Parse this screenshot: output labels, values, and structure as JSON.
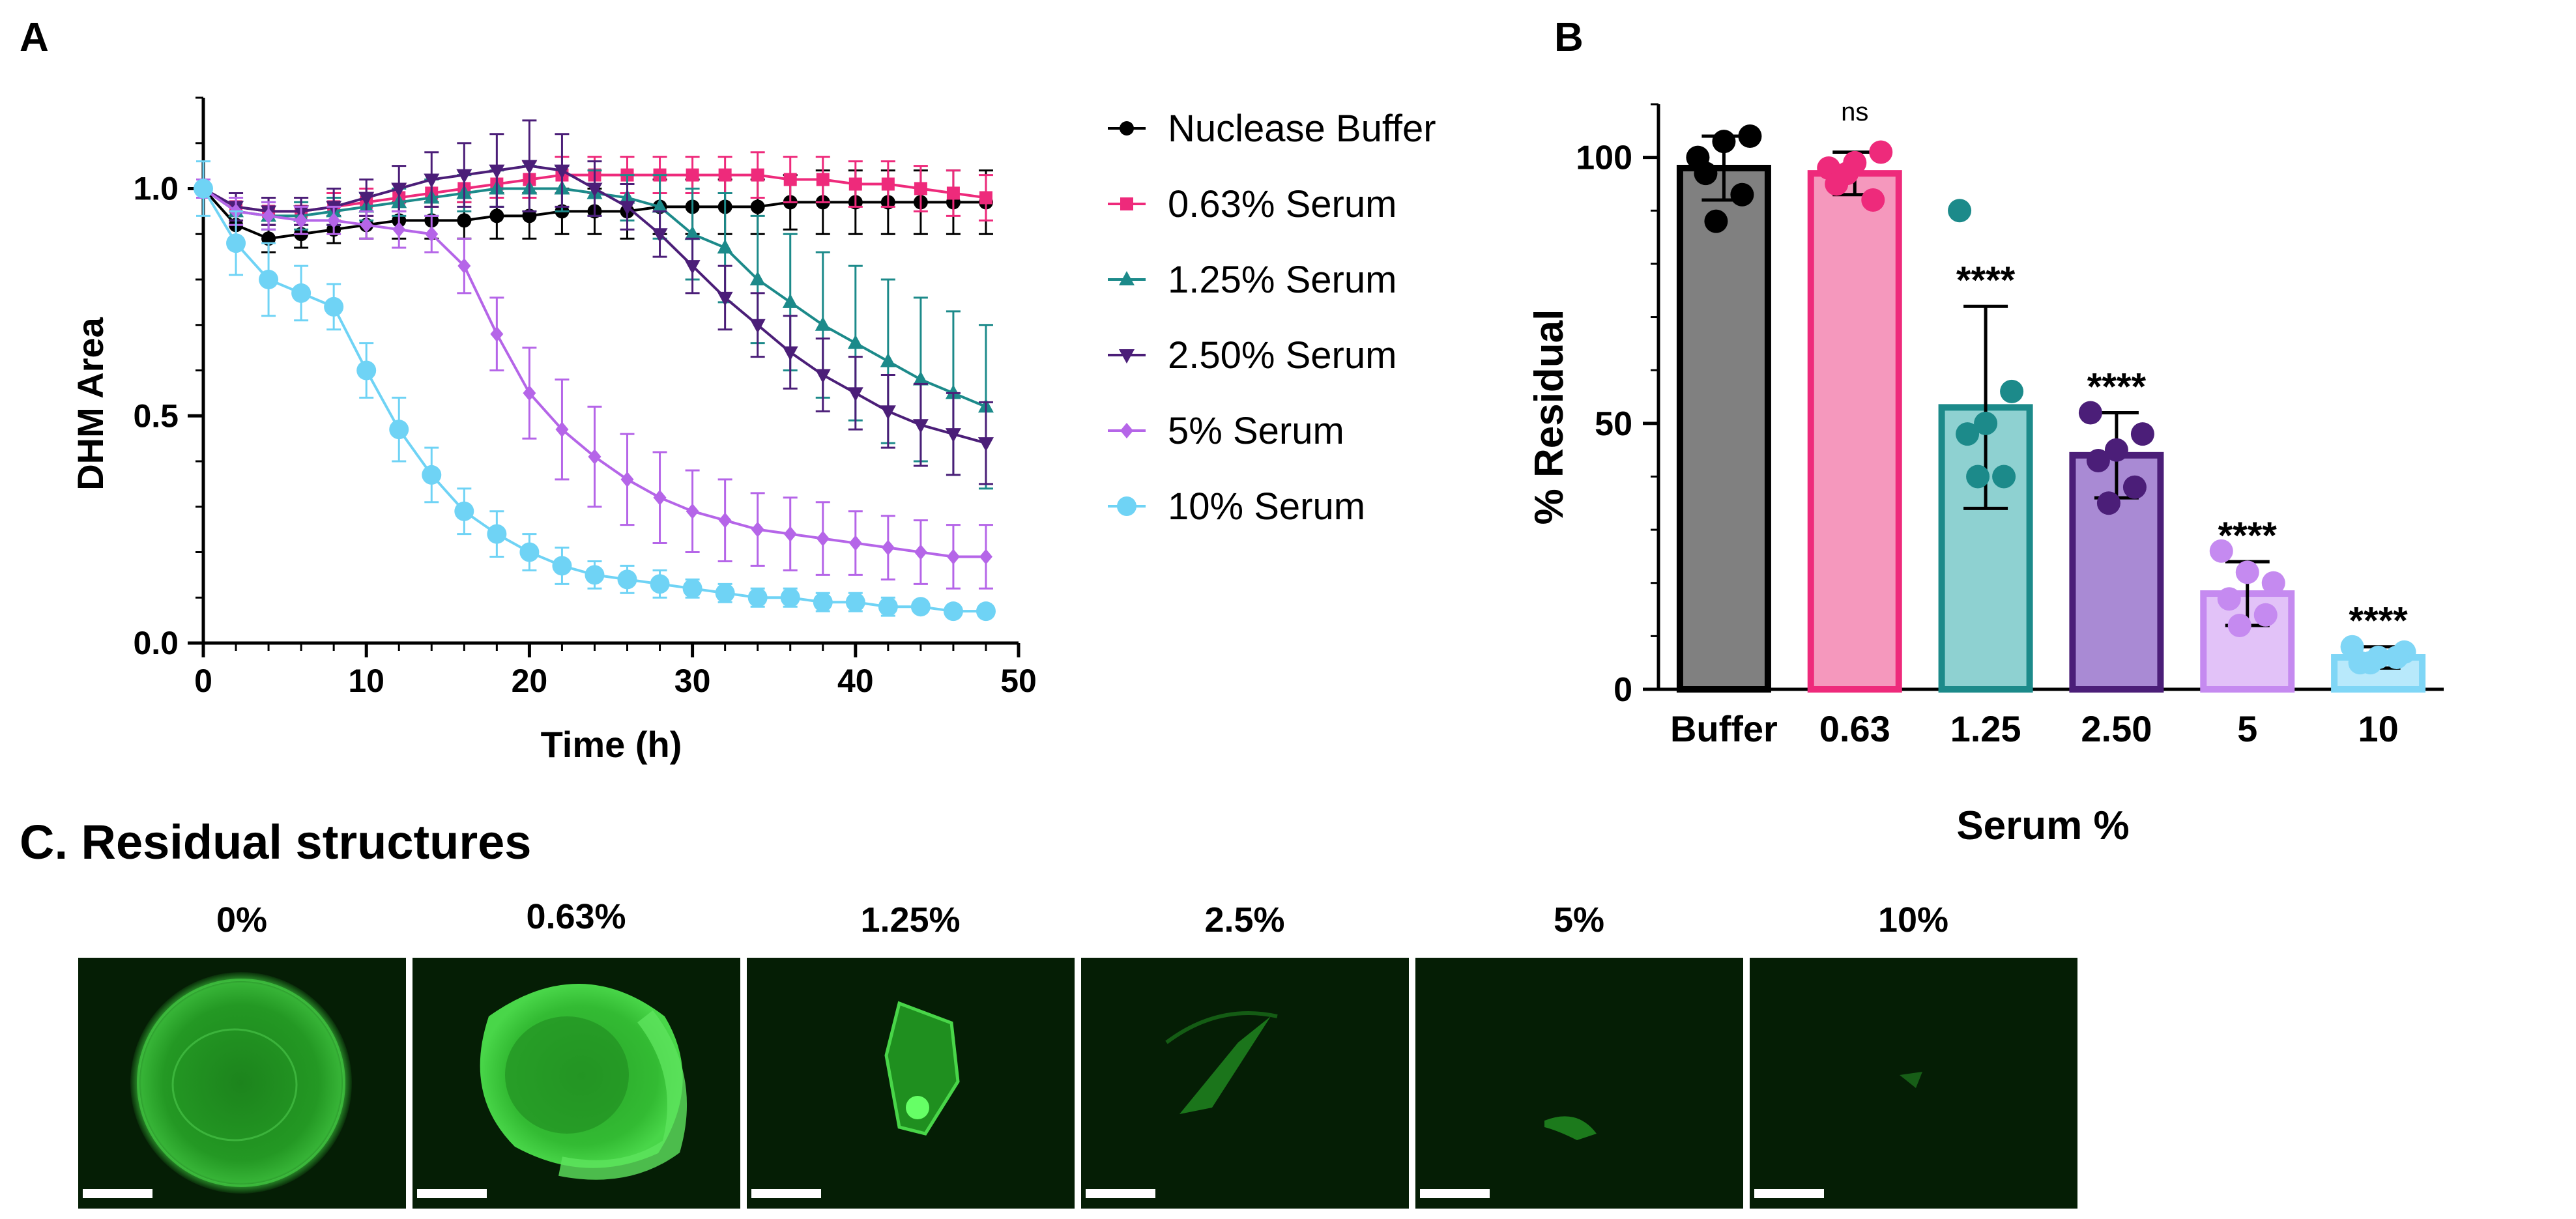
{
  "panels": {
    "a": {
      "letter": "A"
    },
    "b": {
      "letter": "B"
    },
    "c": {
      "letter": "C. Residual structures"
    }
  },
  "chart_data": [
    {
      "type": "line",
      "panel": "A",
      "title": "",
      "xlabel": "Time (h)",
      "ylabel": "DHM Area",
      "xlim": [
        0,
        50
      ],
      "ylim": [
        0,
        1.2
      ],
      "xticks": [
        "0",
        "10",
        "20",
        "30",
        "40",
        "50"
      ],
      "yticks": [
        "0.0",
        "0.5",
        "1.0"
      ],
      "legend_position": "right",
      "error_bars": true,
      "series": [
        {
          "name": "Nuclease Buffer",
          "color": "#000000",
          "marker": "circle",
          "x": [
            0,
            2,
            4,
            6,
            8,
            10,
            12,
            14,
            16,
            18,
            20,
            22,
            24,
            26,
            28,
            30,
            32,
            34,
            36,
            38,
            40,
            42,
            44,
            46,
            48
          ],
          "values": [
            1.0,
            0.92,
            0.89,
            0.9,
            0.91,
            0.92,
            0.93,
            0.93,
            0.93,
            0.94,
            0.94,
            0.95,
            0.95,
            0.95,
            0.96,
            0.96,
            0.96,
            0.96,
            0.97,
            0.97,
            0.97,
            0.97,
            0.97,
            0.97,
            0.97
          ],
          "err": [
            0.02,
            0.03,
            0.03,
            0.03,
            0.03,
            0.03,
            0.04,
            0.04,
            0.04,
            0.05,
            0.05,
            0.05,
            0.05,
            0.06,
            0.06,
            0.06,
            0.06,
            0.06,
            0.06,
            0.07,
            0.07,
            0.07,
            0.07,
            0.07,
            0.07
          ]
        },
        {
          "name": "0.63% Serum",
          "color": "#ee2a7b",
          "marker": "square",
          "x": [
            0,
            2,
            4,
            6,
            8,
            10,
            12,
            14,
            16,
            18,
            20,
            22,
            24,
            26,
            28,
            30,
            32,
            34,
            36,
            38,
            40,
            42,
            44,
            46,
            48
          ],
          "values": [
            1.0,
            0.96,
            0.95,
            0.95,
            0.96,
            0.97,
            0.98,
            0.99,
            1.0,
            1.01,
            1.02,
            1.03,
            1.03,
            1.03,
            1.03,
            1.03,
            1.03,
            1.03,
            1.02,
            1.02,
            1.01,
            1.01,
            1.0,
            0.99,
            0.98
          ],
          "err": [
            0.02,
            0.03,
            0.03,
            0.03,
            0.03,
            0.03,
            0.03,
            0.03,
            0.03,
            0.03,
            0.04,
            0.04,
            0.04,
            0.04,
            0.04,
            0.04,
            0.04,
            0.05,
            0.05,
            0.05,
            0.05,
            0.05,
            0.05,
            0.05,
            0.05
          ]
        },
        {
          "name": "1.25% Serum",
          "color": "#1c8a8a",
          "marker": "triangle-up",
          "x": [
            0,
            2,
            4,
            6,
            8,
            10,
            12,
            14,
            16,
            18,
            20,
            22,
            24,
            26,
            28,
            30,
            32,
            34,
            36,
            38,
            40,
            42,
            44,
            46,
            48
          ],
          "values": [
            1.0,
            0.95,
            0.94,
            0.94,
            0.95,
            0.96,
            0.97,
            0.98,
            0.99,
            1.0,
            1.0,
            1.0,
            0.99,
            0.98,
            0.96,
            0.9,
            0.87,
            0.8,
            0.75,
            0.7,
            0.66,
            0.62,
            0.58,
            0.55,
            0.52
          ],
          "err": [
            0.02,
            0.03,
            0.03,
            0.03,
            0.03,
            0.03,
            0.03,
            0.04,
            0.04,
            0.04,
            0.05,
            0.05,
            0.05,
            0.05,
            0.07,
            0.1,
            0.12,
            0.14,
            0.15,
            0.16,
            0.17,
            0.18,
            0.18,
            0.18,
            0.18
          ]
        },
        {
          "name": "2.50% Serum",
          "color": "#4b1e78",
          "marker": "triangle-down",
          "x": [
            0,
            2,
            4,
            6,
            8,
            10,
            12,
            14,
            16,
            18,
            20,
            22,
            24,
            26,
            28,
            30,
            32,
            34,
            36,
            38,
            40,
            42,
            44,
            46,
            48
          ],
          "values": [
            1.0,
            0.96,
            0.95,
            0.95,
            0.96,
            0.98,
            1.0,
            1.02,
            1.03,
            1.04,
            1.05,
            1.04,
            1.0,
            0.96,
            0.9,
            0.83,
            0.76,
            0.7,
            0.64,
            0.59,
            0.55,
            0.51,
            0.48,
            0.46,
            0.44
          ],
          "err": [
            0.02,
            0.03,
            0.03,
            0.03,
            0.04,
            0.04,
            0.05,
            0.06,
            0.07,
            0.08,
            0.1,
            0.08,
            0.06,
            0.05,
            0.05,
            0.06,
            0.07,
            0.07,
            0.08,
            0.08,
            0.08,
            0.08,
            0.09,
            0.09,
            0.09
          ]
        },
        {
          "name": "5% Serum",
          "color": "#b565e8",
          "marker": "diamond",
          "x": [
            0,
            2,
            4,
            6,
            8,
            10,
            12,
            14,
            16,
            18,
            20,
            22,
            24,
            26,
            28,
            30,
            32,
            34,
            36,
            38,
            40,
            42,
            44,
            46,
            48
          ],
          "values": [
            1.0,
            0.95,
            0.94,
            0.93,
            0.93,
            0.92,
            0.91,
            0.9,
            0.83,
            0.68,
            0.55,
            0.47,
            0.41,
            0.36,
            0.32,
            0.29,
            0.27,
            0.25,
            0.24,
            0.23,
            0.22,
            0.21,
            0.2,
            0.19,
            0.19
          ],
          "err": [
            0.02,
            0.03,
            0.03,
            0.03,
            0.03,
            0.03,
            0.04,
            0.04,
            0.06,
            0.08,
            0.1,
            0.11,
            0.11,
            0.1,
            0.1,
            0.09,
            0.09,
            0.08,
            0.08,
            0.08,
            0.07,
            0.07,
            0.07,
            0.07,
            0.07
          ]
        },
        {
          "name": "10% Serum",
          "color": "#6fd3f5",
          "marker": "circle-large",
          "x": [
            0,
            2,
            4,
            6,
            8,
            10,
            12,
            14,
            16,
            18,
            20,
            22,
            24,
            26,
            28,
            30,
            32,
            34,
            36,
            38,
            40,
            42,
            44,
            46,
            48
          ],
          "values": [
            1.0,
            0.88,
            0.8,
            0.77,
            0.74,
            0.6,
            0.47,
            0.37,
            0.29,
            0.24,
            0.2,
            0.17,
            0.15,
            0.14,
            0.13,
            0.12,
            0.11,
            0.1,
            0.1,
            0.09,
            0.09,
            0.08,
            0.08,
            0.07,
            0.07
          ],
          "err": [
            0.06,
            0.07,
            0.08,
            0.06,
            0.05,
            0.06,
            0.07,
            0.06,
            0.05,
            0.05,
            0.04,
            0.04,
            0.03,
            0.03,
            0.03,
            0.02,
            0.02,
            0.02,
            0.02,
            0.02,
            0.02,
            0.02,
            0.01,
            0.01,
            0.01
          ]
        }
      ]
    },
    {
      "type": "bar",
      "panel": "B",
      "title": "",
      "xlabel": "Serum %",
      "ylabel": "% Residual",
      "ylim": [
        0,
        110
      ],
      "yticks": [
        "0",
        "50",
        "100"
      ],
      "categories": [
        "Buffer",
        "0.63",
        "1.25",
        "2.50",
        "5",
        "10"
      ],
      "values": [
        98,
        97,
        53,
        44,
        18,
        6
      ],
      "sd": [
        6,
        4,
        19,
        8,
        6,
        2
      ],
      "significance": [
        "",
        "ns",
        "****",
        "****",
        "****",
        "****"
      ],
      "fill_colors": [
        "#808080",
        "#f598bd",
        "#8ed1d1",
        "#a98ad4",
        "#e2c2f8",
        "#b8e9fb"
      ],
      "edge_colors": [
        "#000000",
        "#ee2a7b",
        "#1c8a8a",
        "#4b1e78",
        "#c58af0",
        "#7fd6f6"
      ],
      "point_colors": [
        "#000000",
        "#ee2a7b",
        "#1c8a8a",
        "#4b1e78",
        "#c58af0",
        "#7fd6f6"
      ],
      "points": [
        [
          100,
          104,
          97,
          93,
          103,
          88
        ],
        [
          98,
          101,
          95,
          92,
          99,
          97
        ],
        [
          90,
          56,
          48,
          40,
          50,
          40
        ],
        [
          52,
          48,
          43,
          38,
          45,
          35
        ],
        [
          26,
          20,
          17,
          14,
          22,
          12
        ],
        [
          8,
          7,
          5,
          6,
          6,
          5
        ]
      ]
    }
  ],
  "panel_c": {
    "images": [
      {
        "label": "0%"
      },
      {
        "label": "0.63%"
      },
      {
        "label": "1.25%"
      },
      {
        "label": "2.5%"
      },
      {
        "label": "5%"
      },
      {
        "label": "10%"
      }
    ]
  }
}
